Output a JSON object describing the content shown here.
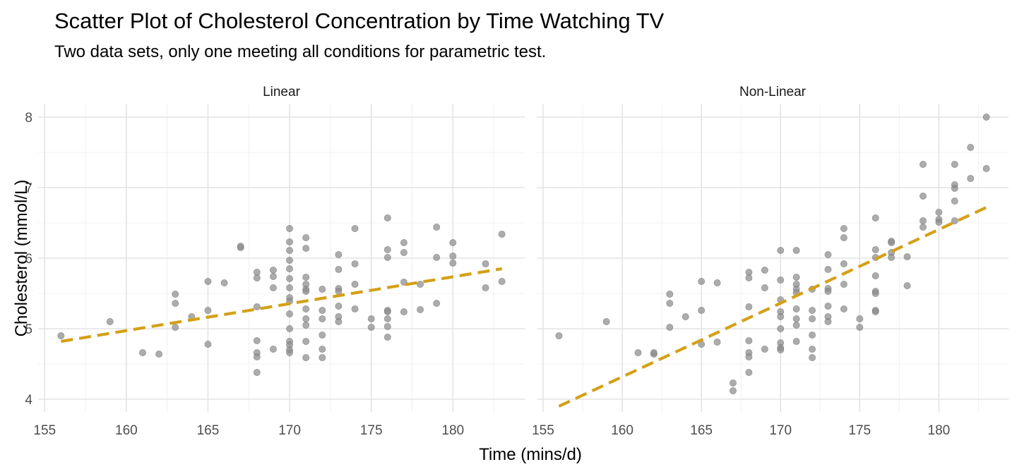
{
  "title": "Scatter Plot of Cholesterol Concentration by Time Watching TV",
  "subtitle": "Two data sets, only one meeting all conditions for parametric test.",
  "chart_data": {
    "type": "scatter",
    "xlabel": "Time (mins/d)",
    "ylabel": "Cholesterol (mmol/L)",
    "xlim": [
      154.6,
      184.4
    ],
    "ylim": [
      3.82,
      8.18
    ],
    "x_ticks": [
      155,
      160,
      165,
      170,
      175,
      180
    ],
    "y_ticks": [
      4,
      5,
      6,
      7,
      8
    ],
    "grid": true,
    "point_color": "#8c8c8c",
    "trend_color": "#d4a017",
    "panels": [
      {
        "label": "Linear",
        "trend_line": {
          "x": [
            156,
            183
          ],
          "y": [
            4.82,
            5.85
          ]
        },
        "points": [
          [
            156,
            4.9
          ],
          [
            159,
            5.1
          ],
          [
            161,
            4.66
          ],
          [
            162,
            4.64
          ],
          [
            163,
            5.49
          ],
          [
            163,
            5.36
          ],
          [
            163,
            5.02
          ],
          [
            164,
            5.17
          ],
          [
            165,
            5.67
          ],
          [
            165,
            5.26
          ],
          [
            165,
            4.78
          ],
          [
            166,
            5.65
          ],
          [
            167,
            6.15
          ],
          [
            167,
            6.17
          ],
          [
            168,
            5.8
          ],
          [
            168,
            5.72
          ],
          [
            168,
            5.31
          ],
          [
            168,
            4.83
          ],
          [
            168,
            4.66
          ],
          [
            168,
            4.6
          ],
          [
            168,
            4.38
          ],
          [
            169,
            5.83
          ],
          [
            169,
            5.74
          ],
          [
            169,
            5.58
          ],
          [
            169,
            4.71
          ],
          [
            170,
            6.42
          ],
          [
            170,
            6.23
          ],
          [
            170,
            6.11
          ],
          [
            170,
            5.97
          ],
          [
            170,
            5.85
          ],
          [
            170,
            5.71
          ],
          [
            170,
            5.58
          ],
          [
            170,
            5.44
          ],
          [
            170,
            5.39
          ],
          [
            170,
            5.21
          ],
          [
            170,
            5.0
          ],
          [
            170,
            4.82
          ],
          [
            170,
            4.77
          ],
          [
            170,
            4.7
          ],
          [
            170,
            4.66
          ],
          [
            171,
            6.29
          ],
          [
            171,
            6.14
          ],
          [
            171,
            5.73
          ],
          [
            171,
            5.63
          ],
          [
            171,
            5.56
          ],
          [
            171,
            5.53
          ],
          [
            171,
            5.28
          ],
          [
            171,
            5.14
          ],
          [
            171,
            5.05
          ],
          [
            171,
            4.82
          ],
          [
            171,
            4.59
          ],
          [
            172,
            5.56
          ],
          [
            172,
            5.26
          ],
          [
            172,
            5.14
          ],
          [
            172,
            4.91
          ],
          [
            172,
            4.71
          ],
          [
            172,
            4.59
          ],
          [
            173,
            6.05
          ],
          [
            173,
            5.84
          ],
          [
            173,
            5.57
          ],
          [
            173,
            5.53
          ],
          [
            173,
            5.32
          ],
          [
            173,
            5.17
          ],
          [
            173,
            5.1
          ],
          [
            174,
            6.42
          ],
          [
            174,
            5.92
          ],
          [
            174,
            5.63
          ],
          [
            174,
            5.28
          ],
          [
            175,
            5.14
          ],
          [
            175,
            5.02
          ],
          [
            176,
            6.57
          ],
          [
            176,
            6.12
          ],
          [
            176,
            6.01
          ],
          [
            176,
            5.26
          ],
          [
            176,
            5.24
          ],
          [
            176,
            5.14
          ],
          [
            176,
            5.03
          ],
          [
            176,
            4.88
          ],
          [
            177,
            6.22
          ],
          [
            177,
            6.08
          ],
          [
            177,
            5.66
          ],
          [
            177,
            5.24
          ],
          [
            178,
            5.63
          ],
          [
            178,
            5.27
          ],
          [
            179,
            6.44
          ],
          [
            179,
            6.01
          ],
          [
            179,
            5.36
          ],
          [
            180,
            6.22
          ],
          [
            180,
            6.03
          ],
          [
            180,
            5.93
          ],
          [
            182,
            5.92
          ],
          [
            182,
            5.58
          ],
          [
            183,
            6.34
          ],
          [
            183,
            5.67
          ]
        ]
      },
      {
        "label": "Non-Linear",
        "trend_line": {
          "x": [
            156,
            183
          ],
          "y": [
            3.9,
            6.72
          ]
        },
        "points": [
          [
            156,
            4.9
          ],
          [
            159,
            5.1
          ],
          [
            161,
            4.66
          ],
          [
            162,
            4.64
          ],
          [
            162,
            4.66
          ],
          [
            163,
            5.49
          ],
          [
            163,
            5.36
          ],
          [
            163,
            5.02
          ],
          [
            164,
            5.17
          ],
          [
            165,
            5.67
          ],
          [
            165,
            5.26
          ],
          [
            165,
            4.78
          ],
          [
            166,
            5.65
          ],
          [
            166,
            4.81
          ],
          [
            167,
            4.23
          ],
          [
            167,
            4.12
          ],
          [
            168,
            5.8
          ],
          [
            168,
            5.72
          ],
          [
            168,
            5.31
          ],
          [
            168,
            4.83
          ],
          [
            168,
            4.66
          ],
          [
            168,
            4.6
          ],
          [
            168,
            4.38
          ],
          [
            169,
            5.83
          ],
          [
            169,
            5.58
          ],
          [
            169,
            4.71
          ],
          [
            170,
            6.11
          ],
          [
            170,
            5.69
          ],
          [
            170,
            5.41
          ],
          [
            170,
            5.24
          ],
          [
            170,
            5.17
          ],
          [
            170,
            5.0
          ],
          [
            170,
            4.8
          ],
          [
            170,
            4.73
          ],
          [
            170,
            4.7
          ],
          [
            171,
            6.11
          ],
          [
            171,
            5.73
          ],
          [
            171,
            5.63
          ],
          [
            171,
            5.56
          ],
          [
            171,
            5.51
          ],
          [
            171,
            5.28
          ],
          [
            171,
            5.14
          ],
          [
            171,
            5.05
          ],
          [
            171,
            4.82
          ],
          [
            172,
            5.56
          ],
          [
            172,
            5.26
          ],
          [
            172,
            5.14
          ],
          [
            172,
            4.91
          ],
          [
            172,
            4.71
          ],
          [
            172,
            4.59
          ],
          [
            173,
            6.05
          ],
          [
            173,
            5.84
          ],
          [
            173,
            5.57
          ],
          [
            173,
            5.53
          ],
          [
            173,
            5.32
          ],
          [
            173,
            5.17
          ],
          [
            173,
            5.1
          ],
          [
            174,
            6.42
          ],
          [
            174,
            6.29
          ],
          [
            174,
            5.92
          ],
          [
            174,
            5.63
          ],
          [
            174,
            5.28
          ],
          [
            175,
            5.14
          ],
          [
            175,
            5.02
          ],
          [
            176,
            6.57
          ],
          [
            176,
            6.12
          ],
          [
            176,
            6.01
          ],
          [
            176,
            5.75
          ],
          [
            176,
            5.53
          ],
          [
            176,
            5.5
          ],
          [
            176,
            5.26
          ],
          [
            176,
            5.24
          ],
          [
            177,
            6.24
          ],
          [
            177,
            6.22
          ],
          [
            177,
            6.08
          ],
          [
            177,
            6.01
          ],
          [
            178,
            6.02
          ],
          [
            178,
            5.61
          ],
          [
            179,
            7.33
          ],
          [
            179,
            6.88
          ],
          [
            179,
            6.53
          ],
          [
            179,
            6.44
          ],
          [
            180,
            6.65
          ],
          [
            180,
            6.55
          ],
          [
            180,
            6.51
          ],
          [
            181,
            7.33
          ],
          [
            181,
            7.04
          ],
          [
            181,
            6.99
          ],
          [
            181,
            6.81
          ],
          [
            181,
            6.53
          ],
          [
            182,
            7.57
          ],
          [
            182,
            7.13
          ],
          [
            183,
            8.0
          ],
          [
            183,
            7.27
          ]
        ]
      }
    ]
  }
}
